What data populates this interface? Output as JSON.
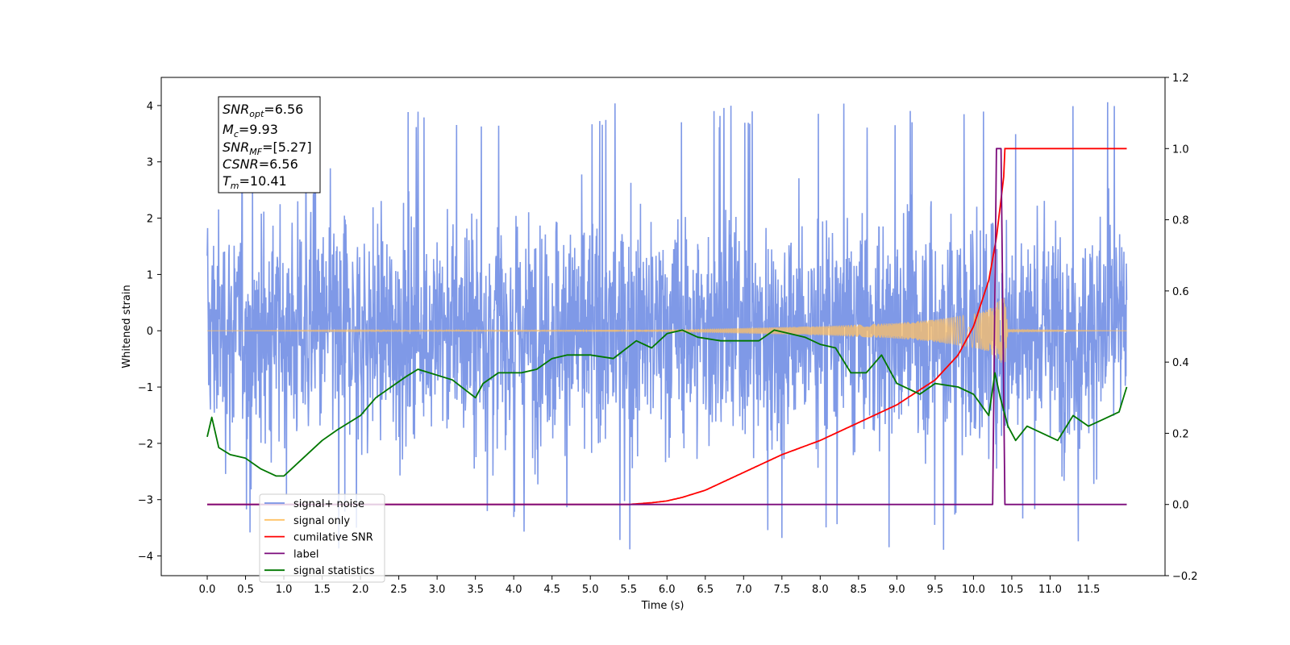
{
  "chart_data": {
    "type": "line",
    "xlabel": "Time (s)",
    "ylabel": "Whitened strain",
    "xlim": [
      -0.6,
      12.5
    ],
    "ylim": [
      -4.35,
      4.5
    ],
    "y2lim": [
      -0.2,
      1.2
    ],
    "x_ticks": [
      "0.0",
      "0.5",
      "1.0",
      "1.5",
      "2.0",
      "2.5",
      "3.0",
      "3.5",
      "4.0",
      "4.5",
      "5.0",
      "5.5",
      "6.0",
      "6.5",
      "7.0",
      "7.5",
      "8.0",
      "8.5",
      "9.0",
      "9.5",
      "10.0",
      "10.5",
      "11.0",
      "11.5"
    ],
    "y_ticks": [
      "−4",
      "−3",
      "−2",
      "−1",
      "0",
      "1",
      "2",
      "3",
      "4"
    ],
    "y2_ticks": [
      "−0.2",
      "0.0",
      "0.2",
      "0.4",
      "0.6",
      "0.8",
      "1.0",
      "1.2"
    ],
    "annotation": [
      {
        "base": "SNR",
        "sub": "opt",
        "rest": "=6.56"
      },
      {
        "base": "M",
        "sub": "c",
        "rest": "=9.93"
      },
      {
        "base": "SNR",
        "sub": "MF",
        "rest": "=[5.27]"
      },
      {
        "base": "CSNR",
        "sub": "",
        "rest": "=6.56"
      },
      {
        "base": "T",
        "sub": "m",
        "rest": "=10.41"
      }
    ],
    "legend": {
      "placement": "lower-left",
      "entries": [
        {
          "label": "signal+ noise",
          "color": "#7893e6"
        },
        {
          "label": "signal only",
          "color": "#ffc266"
        },
        {
          "label": "cumilative SNR",
          "color": "#ff0000"
        },
        {
          "label": "label",
          "color": "#7b0a7b"
        },
        {
          "label": "signal statistics",
          "color": "#007700"
        }
      ]
    },
    "series": [
      {
        "name": "signal+ noise",
        "axis": "left",
        "color": "#7893e6",
        "x_range": [
          0.0,
          12.0
        ],
        "envelope": {
          "typical_abs": 2.4,
          "max": 4.1,
          "min": -3.9
        }
      },
      {
        "name": "signal only",
        "axis": "left",
        "color": "#ffc266",
        "x_range": [
          0.0,
          12.0
        ],
        "amplitude": {
          "x": [
            0.0,
            6.0,
            8.0,
            9.0,
            9.5,
            10.0,
            10.2,
            10.35,
            10.41,
            10.45,
            12.0
          ],
          "y": [
            0.0,
            0.02,
            0.08,
            0.14,
            0.2,
            0.3,
            0.38,
            0.55,
            0.65,
            0.02,
            0.0
          ]
        }
      },
      {
        "name": "cumilative SNR",
        "axis": "right",
        "color": "#ff0000",
        "x": [
          0.0,
          5.5,
          5.8,
          6.0,
          6.2,
          6.5,
          6.8,
          7.0,
          7.5,
          8.0,
          8.5,
          9.0,
          9.5,
          9.8,
          10.0,
          10.2,
          10.3,
          10.4,
          10.41,
          12.0
        ],
        "y": [
          0.0,
          0.0,
          0.005,
          0.01,
          0.02,
          0.04,
          0.07,
          0.09,
          0.14,
          0.18,
          0.23,
          0.28,
          0.35,
          0.42,
          0.5,
          0.63,
          0.75,
          0.93,
          1.0,
          1.0
        ]
      },
      {
        "name": "label",
        "axis": "right",
        "color": "#7b0a7b",
        "x": [
          0.0,
          10.25,
          10.3,
          10.36,
          10.41,
          12.0
        ],
        "y": [
          0.0,
          0.0,
          1.0,
          1.0,
          0.0,
          0.0
        ]
      },
      {
        "name": "signal statistics",
        "axis": "right",
        "color": "#007700",
        "x": [
          0.0,
          0.06,
          0.15,
          0.3,
          0.5,
          0.7,
          0.9,
          1.0,
          1.2,
          1.5,
          1.7,
          2.0,
          2.2,
          2.4,
          2.6,
          2.75,
          2.9,
          3.2,
          3.5,
          3.6,
          3.8,
          4.1,
          4.3,
          4.5,
          4.7,
          5.0,
          5.3,
          5.6,
          5.8,
          6.0,
          6.2,
          6.4,
          6.7,
          7.0,
          7.2,
          7.4,
          7.6,
          7.8,
          8.0,
          8.2,
          8.4,
          8.6,
          8.8,
          9.0,
          9.3,
          9.5,
          9.8,
          10.0,
          10.2,
          10.28,
          10.35,
          10.45,
          10.55,
          10.7,
          10.9,
          11.1,
          11.3,
          11.5,
          11.7,
          11.9,
          12.0
        ],
        "y": [
          0.19,
          0.245,
          0.16,
          0.14,
          0.13,
          0.1,
          0.08,
          0.08,
          0.12,
          0.18,
          0.21,
          0.25,
          0.3,
          0.33,
          0.36,
          0.38,
          0.37,
          0.35,
          0.3,
          0.34,
          0.37,
          0.37,
          0.38,
          0.41,
          0.42,
          0.42,
          0.41,
          0.46,
          0.44,
          0.48,
          0.49,
          0.47,
          0.46,
          0.46,
          0.46,
          0.49,
          0.48,
          0.47,
          0.45,
          0.44,
          0.37,
          0.37,
          0.42,
          0.34,
          0.31,
          0.34,
          0.33,
          0.31,
          0.25,
          0.37,
          0.3,
          0.22,
          0.18,
          0.22,
          0.2,
          0.18,
          0.25,
          0.22,
          0.24,
          0.26,
          0.33
        ]
      }
    ]
  }
}
